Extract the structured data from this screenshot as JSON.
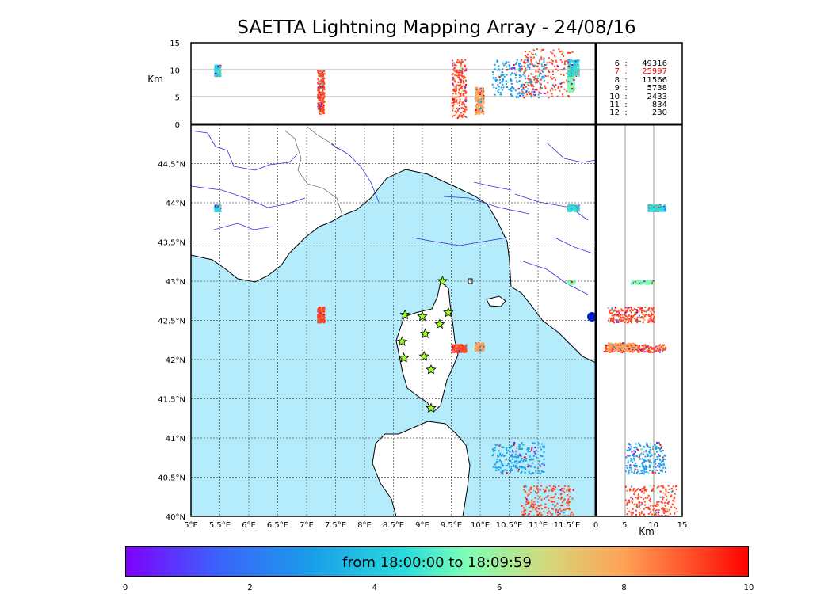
{
  "title": "SAETTA Lightning Mapping Array - 24/08/16",
  "chart_data": {
    "type": "scatter",
    "title": "SAETTA Lightning Mapping Array - 24/08/16",
    "map": {
      "lon_range": [
        5,
        12
      ],
      "lat_range": [
        40,
        45
      ],
      "lon_ticks": [
        "5°E",
        "5.5°E",
        "6°E",
        "6.5°E",
        "7°E",
        "7.5°E",
        "8°E",
        "8.5°E",
        "9°E",
        "9.5°E",
        "10°E",
        "10.5°E",
        "11°E",
        "11.5°E"
      ],
      "lat_ticks": [
        "40°N",
        "40.5°N",
        "41°N",
        "41.5°N",
        "42°N",
        "42.5°N",
        "43°N",
        "43.5°N",
        "44°N",
        "44.5°N"
      ],
      "grid": "dotted"
    },
    "altitude_axis": {
      "label": "Km",
      "range": [
        0,
        15
      ],
      "ticks": [
        "0",
        "5",
        "10",
        "15"
      ]
    },
    "stations": [
      {
        "lon": 9.35,
        "lat": 43.0
      },
      {
        "lon": 8.7,
        "lat": 42.57
      },
      {
        "lon": 9.0,
        "lat": 42.55
      },
      {
        "lon": 9.45,
        "lat": 42.6
      },
      {
        "lon": 9.3,
        "lat": 42.45
      },
      {
        "lon": 9.05,
        "lat": 42.33
      },
      {
        "lon": 8.65,
        "lat": 42.23
      },
      {
        "lon": 8.68,
        "lat": 42.02
      },
      {
        "lon": 9.03,
        "lat": 42.04
      },
      {
        "lon": 9.15,
        "lat": 41.87
      },
      {
        "lon": 9.15,
        "lat": 41.38
      }
    ],
    "clusters": [
      {
        "lon": [
          5.4,
          5.5
        ],
        "lat": [
          43.9,
          43.98
        ],
        "alt": [
          9,
          11
        ],
        "color": "#2adddd"
      },
      {
        "lon": [
          7.18,
          7.3
        ],
        "lat": [
          42.48,
          42.68
        ],
        "alt": [
          2,
          10
        ],
        "color": "#ff4624"
      },
      {
        "lon": [
          9.5,
          9.75
        ],
        "lat": [
          42.1,
          42.2
        ],
        "alt": [
          1,
          12
        ],
        "color": "#ff4624"
      },
      {
        "lon": [
          9.9,
          10.05
        ],
        "lat": [
          42.12,
          42.22
        ],
        "alt": [
          2,
          7
        ],
        "color": "#ffa256"
      },
      {
        "lon": [
          10.2,
          11.1
        ],
        "lat": [
          40.55,
          40.95
        ],
        "alt": [
          5,
          12
        ],
        "color": "#1a9ee8"
      },
      {
        "lon": [
          10.7,
          11.6
        ],
        "lat": [
          40.0,
          40.4
        ],
        "alt": [
          5,
          14
        ],
        "color": "#ff4624"
      },
      {
        "lon": [
          11.5,
          11.62
        ],
        "lat": [
          42.97,
          43.02
        ],
        "alt": [
          6,
          10
        ],
        "color": "#80ffb4"
      },
      {
        "lon": [
          11.5,
          11.7
        ],
        "lat": [
          43.9,
          43.98
        ],
        "alt": [
          9,
          12
        ],
        "color": "#2adddd"
      }
    ],
    "counts": [
      {
        "minute": "6",
        "value": "49316",
        "color": "#000000"
      },
      {
        "minute": "7",
        "value": "25997",
        "color": "#ff0000"
      },
      {
        "minute": "8",
        "value": "11566",
        "color": "#000000"
      },
      {
        "minute": "9",
        "value": "5738",
        "color": "#000000"
      },
      {
        "minute": "10",
        "value": "2433",
        "color": "#000000"
      },
      {
        "minute": "11",
        "value": "834",
        "color": "#000000"
      },
      {
        "minute": "12",
        "value": "230",
        "color": "#000000"
      }
    ],
    "colorbar": {
      "label": "from 18:00:00 to 18:09:59",
      "range": [
        0,
        10
      ],
      "ticks": [
        "0",
        "2",
        "4",
        "6",
        "8",
        "10"
      ],
      "colormap": [
        "#7f00ff",
        "#1a9ee8",
        "#80ffb4",
        "#ffa256",
        "#ff0000"
      ]
    },
    "colors": {
      "sea": "#b5ecfc",
      "land": "#ffffff",
      "rivers": "#3030e0",
      "coast": "#000000"
    }
  }
}
